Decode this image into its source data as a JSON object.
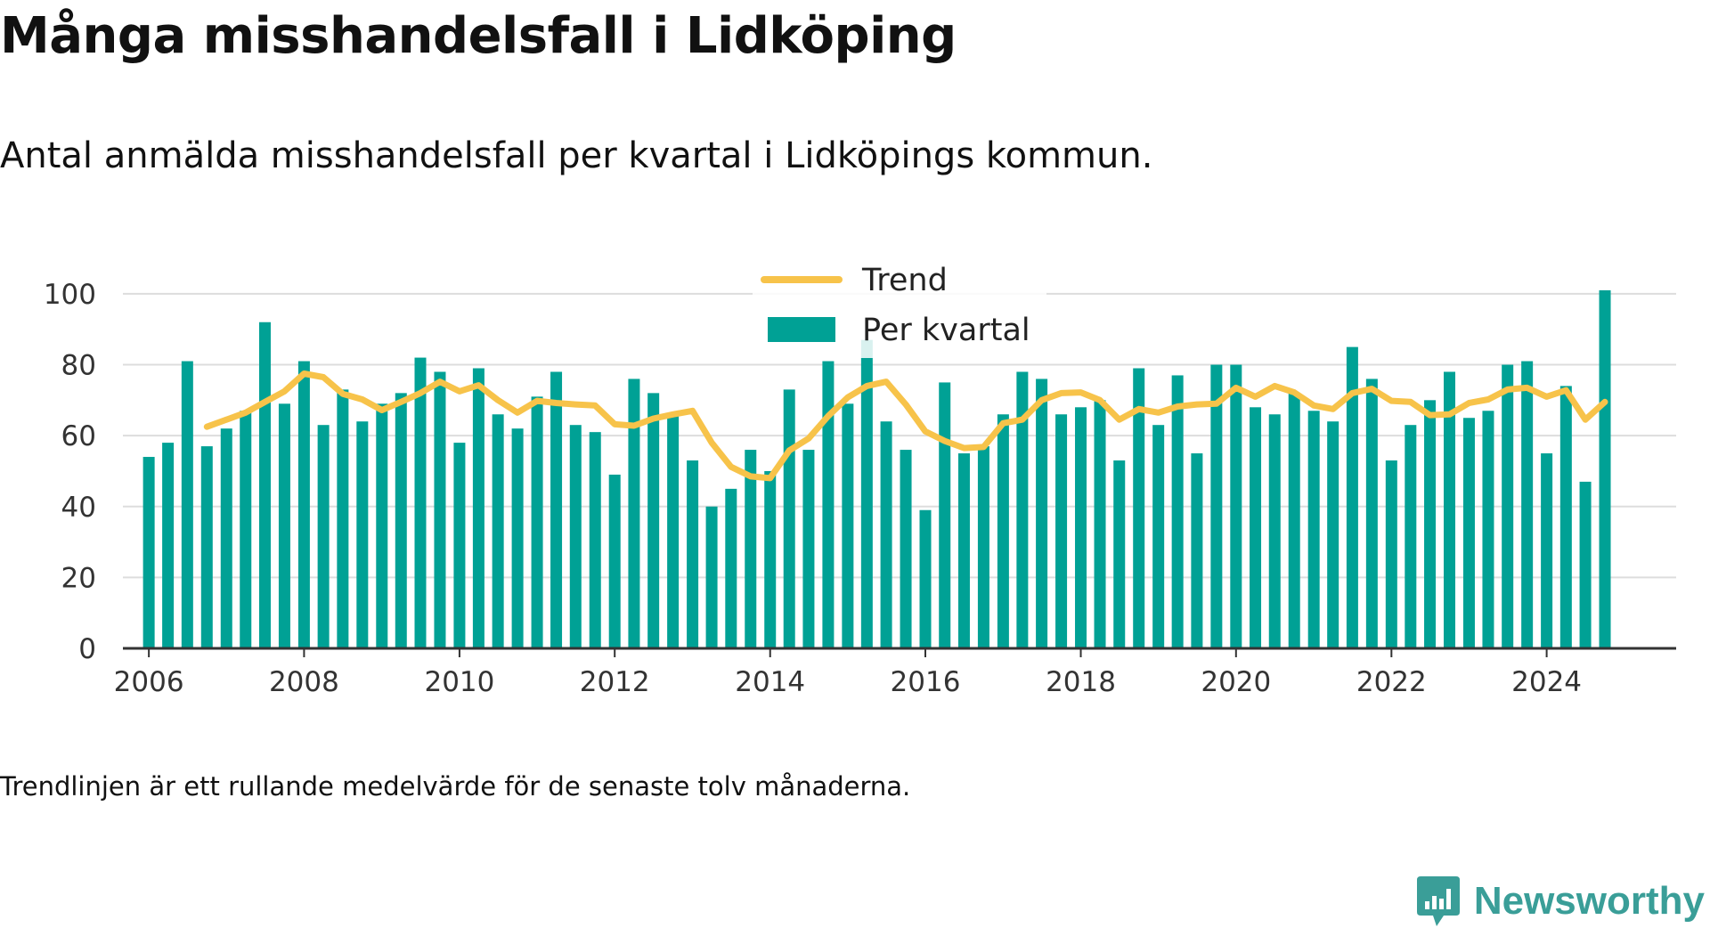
{
  "title": "Många misshandelsfall i Lidköping",
  "subtitle": "Antal anmälda misshandelsfall per kvartal i Lidköpings kommun.",
  "footnote": "Trendlinjen är ett rullande medelvärde för de senaste tolv månaderna.",
  "brand": {
    "name": "Newsworthy",
    "icon": "newsworthy-logo-icon",
    "color": "#3a9e98"
  },
  "colors": {
    "bars": "#00a195",
    "trend": "#f7c34a",
    "grid": "#dddddd",
    "axis": "#333333"
  },
  "chart_data": {
    "type": "bar",
    "x_type": "date",
    "ylim": [
      0,
      105
    ],
    "yticks": [
      0,
      20,
      40,
      60,
      80,
      100
    ],
    "xticks": [
      "2006",
      "2008",
      "2010",
      "2012",
      "2014",
      "2016",
      "2018",
      "2020",
      "2022",
      "2024"
    ],
    "xlim": [
      "2005-09-01",
      "2025-09-01"
    ],
    "grid": true,
    "legend": {
      "position": "top-center",
      "entries": [
        "Trend",
        "Per kvartal"
      ]
    },
    "categories": [
      "2006-01",
      "2006-04",
      "2006-07",
      "2006-10",
      "2007-01",
      "2007-04",
      "2007-07",
      "2007-10",
      "2008-01",
      "2008-04",
      "2008-07",
      "2008-10",
      "2009-01",
      "2009-04",
      "2009-07",
      "2009-10",
      "2010-01",
      "2010-04",
      "2010-07",
      "2010-10",
      "2011-01",
      "2011-04",
      "2011-07",
      "2011-10",
      "2012-01",
      "2012-04",
      "2012-07",
      "2012-10",
      "2013-01",
      "2013-04",
      "2013-07",
      "2013-10",
      "2014-01",
      "2014-04",
      "2014-07",
      "2014-10",
      "2015-01",
      "2015-04",
      "2015-07",
      "2015-10",
      "2016-01",
      "2016-04",
      "2016-07",
      "2016-10",
      "2017-01",
      "2017-04",
      "2017-07",
      "2017-10",
      "2018-01",
      "2018-04",
      "2018-07",
      "2018-10",
      "2019-01",
      "2019-04",
      "2019-07",
      "2019-10",
      "2020-01",
      "2020-04",
      "2020-07",
      "2020-10",
      "2021-01",
      "2021-04",
      "2021-07",
      "2021-10",
      "2022-01",
      "2022-04",
      "2022-07",
      "2022-10",
      "2023-01",
      "2023-04",
      "2023-07",
      "2023-10",
      "2024-01",
      "2024-04",
      "2024-07",
      "2024-10"
    ],
    "series": [
      {
        "name": "Per kvartal",
        "type": "bar",
        "values": [
          54,
          58,
          81,
          57,
          62,
          67,
          92,
          69,
          81,
          63,
          73,
          64,
          69,
          72,
          82,
          78,
          58,
          79,
          66,
          62,
          71,
          78,
          63,
          61,
          49,
          76,
          72,
          66,
          53,
          40,
          45,
          56,
          50,
          73,
          56,
          81,
          69,
          87,
          64,
          56,
          39,
          75,
          55,
          57,
          66,
          78,
          76,
          66,
          68,
          70,
          53,
          79,
          63,
          77,
          55,
          80,
          80,
          68,
          66,
          72,
          67,
          64,
          85,
          76,
          53,
          63,
          70,
          78,
          65,
          67,
          80,
          81,
          55,
          74,
          47,
          101
        ]
      },
      {
        "name": "Trend",
        "type": "line",
        "x": [
          "2006-10",
          "2007-01",
          "2007-04",
          "2007-07",
          "2007-10",
          "2008-01",
          "2008-04",
          "2008-07",
          "2008-10",
          "2009-01",
          "2009-04",
          "2009-07",
          "2009-10",
          "2010-01",
          "2010-04",
          "2010-07",
          "2010-10",
          "2011-01",
          "2011-04",
          "2011-07",
          "2011-10",
          "2012-01",
          "2012-04",
          "2012-07",
          "2012-10",
          "2013-01",
          "2013-04",
          "2013-07",
          "2013-10",
          "2014-01",
          "2014-04",
          "2014-07",
          "2014-10",
          "2015-01",
          "2015-04",
          "2015-07",
          "2015-10",
          "2016-01",
          "2016-04",
          "2016-07",
          "2016-10",
          "2017-01",
          "2017-04",
          "2017-07",
          "2017-10",
          "2018-01",
          "2018-04",
          "2018-07",
          "2018-10",
          "2019-01",
          "2019-04",
          "2019-07",
          "2019-10",
          "2020-01",
          "2020-04",
          "2020-07",
          "2020-10",
          "2021-01",
          "2021-04",
          "2021-07",
          "2021-10",
          "2022-01",
          "2022-04",
          "2022-07",
          "2022-10",
          "2023-01",
          "2023-04",
          "2023-07",
          "2023-10",
          "2024-01",
          "2024-04",
          "2024-07",
          "2024-10"
        ],
        "values": [
          62.5,
          64.5,
          66.5,
          69.5,
          72.5,
          77.5,
          76.5,
          71.8,
          70.2,
          67.2,
          69.5,
          72,
          75.2,
          72.5,
          74.2,
          70,
          66.5,
          69.8,
          69.2,
          68.8,
          68.5,
          63.2,
          62.8,
          64.8,
          66,
          67,
          58,
          51.2,
          48.5,
          48,
          55.8,
          59.2,
          65.5,
          70.8,
          74,
          75.2,
          68.8,
          61.2,
          58.5,
          56.5,
          56.8,
          63.5,
          64.5,
          70,
          72,
          72.2,
          70,
          64.5,
          67.5,
          66.5,
          68.2,
          68.8,
          69,
          73.5,
          71,
          74,
          72.2,
          68.5,
          67.5,
          72,
          73.2,
          69.8,
          69.5,
          65.8,
          66,
          69.2,
          70.2,
          73,
          73.5,
          71,
          72.8,
          64.5,
          69.5
        ]
      }
    ]
  }
}
